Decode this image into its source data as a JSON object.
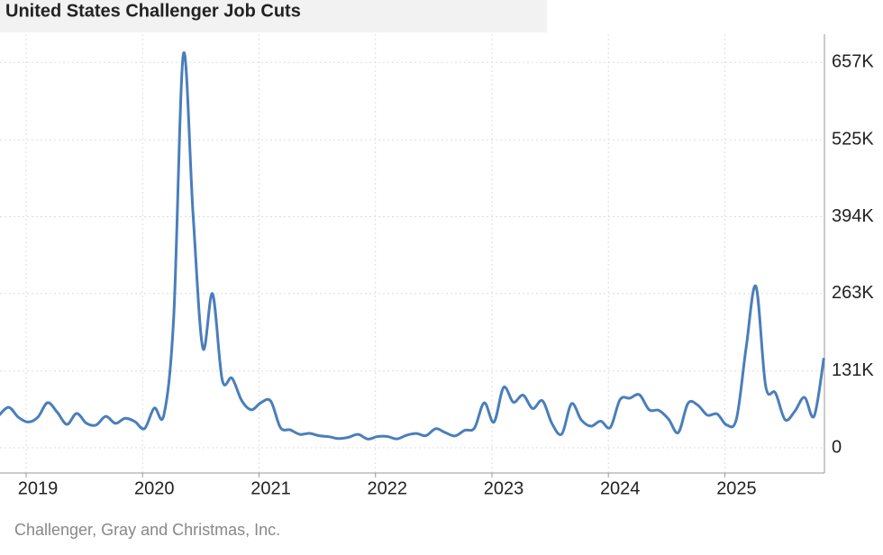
{
  "chart_data": {
    "type": "line",
    "title": "United States Challenger Job Cuts",
    "source": "Challenger, Gray and Christmas, Inc.",
    "categories": [
      null,
      null,
      null,
      null,
      "2019",
      null,
      null,
      null,
      null,
      null,
      null,
      null,
      null,
      null,
      null,
      null,
      "2020",
      null,
      null,
      null,
      null,
      null,
      null,
      null,
      null,
      null,
      null,
      null,
      "2021",
      null,
      null,
      null,
      null,
      null,
      null,
      null,
      null,
      null,
      null,
      null,
      "2022",
      null,
      null,
      null,
      null,
      null,
      null,
      null,
      null,
      null,
      null,
      null,
      "2023",
      null,
      null,
      null,
      null,
      null,
      null,
      null,
      null,
      null,
      null,
      null,
      "2024",
      null,
      null,
      null,
      null,
      null,
      null,
      null,
      null,
      null,
      null,
      null,
      "2025",
      null,
      null,
      null,
      null,
      null,
      null,
      null,
      null,
      null
    ],
    "series": [
      {
        "name": "Job Cuts",
        "color": "#4a7ebb",
        "values": [
          55300,
          69000,
          51900,
          43900,
          52200,
          76800,
          60600,
          40000,
          58600,
          41900,
          38800,
          53500,
          41600,
          50300,
          44600,
          32800,
          67700,
          56700,
          222300,
          671100,
          397000,
          170200,
          262600,
          115800,
          118800,
          80700,
          64800,
          77000,
          79600,
          34500,
          30600,
          22900,
          24600,
          20500,
          18900,
          15700,
          17900,
          22800,
          14900,
          19100,
          19300,
          15200,
          21400,
          24300,
          20700,
          32500,
          25800,
          20300,
          29900,
          33800,
          76800,
          43700,
          103000,
          77800,
          89700,
          66900,
          80100,
          40700,
          23700,
          75200,
          47500,
          36800,
          45500,
          34800,
          82300,
          84600,
          90300,
          64800,
          63800,
          48800,
          25900,
          75900,
          72800,
          55600,
          57700,
          38800,
          49800,
          172000,
          275200,
          105400,
          93800,
          48000,
          62100,
          85900,
          54100,
          153100
        ]
      }
    ],
    "ylim": [
      -43000,
      705000
    ],
    "yticks": [
      0,
      {
        "value": 131000,
        "label": "131K"
      },
      {
        "value": 263000,
        "label": "263K"
      },
      {
        "value": 394000,
        "label": "394K"
      },
      {
        "value": 525000,
        "label": "525K"
      },
      {
        "value": 657000,
        "label": "657K"
      }
    ],
    "grid": true,
    "yaxis_side": "right"
  }
}
